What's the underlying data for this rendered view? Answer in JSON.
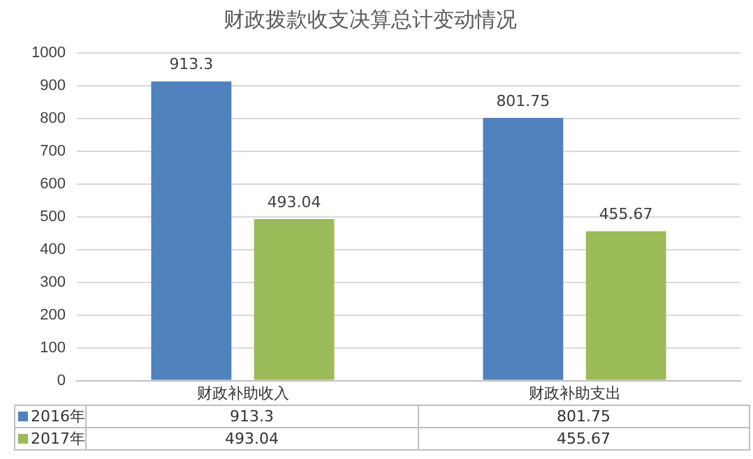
{
  "chart_data": {
    "type": "bar",
    "title": "财政拨款收支决算总计变动情况",
    "categories": [
      "财政补助收入",
      "财政补助支出"
    ],
    "series": [
      {
        "name": "2016年",
        "color": "#4f81bd",
        "values": [
          913.3,
          801.75
        ],
        "value_labels": [
          "913.3",
          "801.75"
        ]
      },
      {
        "name": "2017年",
        "color": "#9bbb59",
        "values": [
          493.04,
          455.67
        ],
        "value_labels": [
          "493.04",
          "455.67"
        ]
      }
    ],
    "ylim": [
      0,
      1000
    ],
    "yticks": [
      0,
      100,
      200,
      300,
      400,
      500,
      600,
      700,
      800,
      900,
      1000
    ],
    "grid": "y",
    "legend": "bottom"
  }
}
